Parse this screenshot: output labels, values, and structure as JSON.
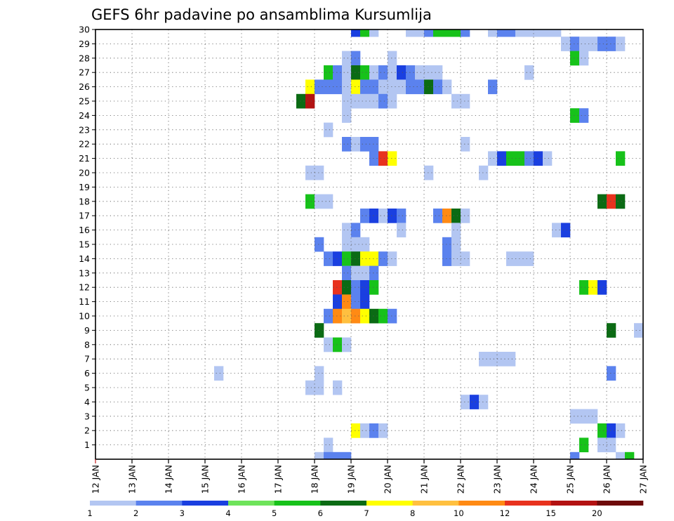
{
  "chart_data": {
    "type": "heatmap",
    "title": "GEFS 6hr padavine po ansamblima Kursumlija",
    "x_dates": [
      "12 JAN",
      "13 JAN",
      "14 JAN",
      "15 JAN",
      "16 JAN",
      "17 JAN",
      "18 JAN",
      "19 JAN",
      "20 JAN",
      "21 JAN",
      "22 JAN",
      "23 JAN",
      "24 JAN",
      "25 JAN",
      "26 JAN",
      "27 JAN"
    ],
    "x_domain": [
      12,
      27
    ],
    "y_ticks": [
      1,
      2,
      3,
      4,
      5,
      6,
      7,
      8,
      9,
      10,
      11,
      12,
      13,
      14,
      15,
      16,
      17,
      18,
      19,
      20,
      21,
      22,
      23,
      24,
      25,
      26,
      27,
      28,
      29,
      30
    ],
    "y_domain": [
      0,
      30
    ],
    "grid": true,
    "step_days": 0.25,
    "colorbar": {
      "labels": [
        "1",
        "2",
        "3",
        "4",
        "5",
        "6",
        "7",
        "8",
        "10",
        "12",
        "15",
        "20"
      ],
      "colors": [
        "#b3c6f2",
        "#5b82ee",
        "#1a3fe0",
        "#6ee35a",
        "#17c21a",
        "#0b6b14",
        "#ffff00",
        "#ffc040",
        "#ff8a14",
        "#e8321e",
        "#b31212",
        "#6e0a0a"
      ]
    },
    "cells": [
      [
        30,
        19.0,
        19.25,
        3
      ],
      [
        30,
        19.25,
        19.5,
        5
      ],
      [
        30,
        19.5,
        19.75,
        1
      ],
      [
        30,
        20.5,
        21.0,
        1
      ],
      [
        30,
        21.0,
        21.25,
        2
      ],
      [
        30,
        21.25,
        22.0,
        5
      ],
      [
        30,
        22.0,
        22.25,
        2
      ],
      [
        30,
        22.75,
        23.0,
        1
      ],
      [
        30,
        23.0,
        23.5,
        2
      ],
      [
        30,
        23.5,
        24.75,
        1
      ],
      [
        29,
        24.75,
        25.0,
        1
      ],
      [
        29,
        25.0,
        25.25,
        2
      ],
      [
        29,
        25.25,
        25.75,
        1
      ],
      [
        29,
        25.75,
        26.25,
        2
      ],
      [
        29,
        26.25,
        26.5,
        1
      ],
      [
        28,
        18.75,
        19.0,
        1
      ],
      [
        28,
        19.0,
        19.25,
        2
      ],
      [
        28,
        20.0,
        20.25,
        1
      ],
      [
        28,
        25.0,
        25.25,
        5
      ],
      [
        28,
        25.25,
        25.5,
        1
      ],
      [
        27,
        18.25,
        18.5,
        5
      ],
      [
        27,
        18.5,
        18.75,
        2
      ],
      [
        27,
        18.75,
        19.0,
        1
      ],
      [
        27,
        19.0,
        19.25,
        6
      ],
      [
        27,
        19.25,
        19.5,
        5
      ],
      [
        27,
        19.5,
        19.75,
        1
      ],
      [
        27,
        19.75,
        20.0,
        2
      ],
      [
        27,
        20.0,
        20.25,
        1
      ],
      [
        27,
        20.25,
        20.5,
        3
      ],
      [
        27,
        20.5,
        20.75,
        2
      ],
      [
        27,
        20.75,
        21.5,
        1
      ],
      [
        27,
        23.75,
        24.0,
        1
      ],
      [
        26,
        17.75,
        18.0,
        7
      ],
      [
        26,
        18.0,
        18.25,
        2
      ],
      [
        26,
        18.25,
        18.75,
        2
      ],
      [
        26,
        18.75,
        19.0,
        1
      ],
      [
        26,
        19.0,
        19.25,
        7
      ],
      [
        26,
        19.25,
        19.75,
        2
      ],
      [
        26,
        19.75,
        20.0,
        1
      ],
      [
        26,
        20.0,
        20.5,
        1
      ],
      [
        26,
        20.5,
        21.0,
        2
      ],
      [
        26,
        21.0,
        21.25,
        6
      ],
      [
        26,
        21.25,
        21.5,
        2
      ],
      [
        26,
        21.5,
        21.75,
        1
      ],
      [
        26,
        22.75,
        23.0,
        2
      ],
      [
        25,
        17.5,
        17.75,
        6
      ],
      [
        25,
        17.75,
        18.0,
        11
      ],
      [
        25,
        18.75,
        19.0,
        1
      ],
      [
        25,
        19.0,
        19.75,
        1
      ],
      [
        25,
        19.75,
        20.0,
        2
      ],
      [
        25,
        20.0,
        20.25,
        1
      ],
      [
        25,
        21.75,
        22.25,
        1
      ],
      [
        24,
        18.75,
        19.0,
        1
      ],
      [
        24,
        25.0,
        25.25,
        5
      ],
      [
        24,
        25.25,
        25.5,
        2
      ],
      [
        23,
        18.25,
        18.5,
        1
      ],
      [
        22,
        18.75,
        19.0,
        2
      ],
      [
        22,
        19.0,
        19.25,
        1
      ],
      [
        22,
        19.25,
        19.75,
        2
      ],
      [
        22,
        22.0,
        22.25,
        1
      ],
      [
        21,
        19.5,
        19.75,
        2
      ],
      [
        21,
        19.75,
        20.0,
        10
      ],
      [
        21,
        20.0,
        20.25,
        7
      ],
      [
        21,
        22.75,
        23.0,
        1
      ],
      [
        21,
        23.0,
        23.25,
        3
      ],
      [
        21,
        23.25,
        23.75,
        5
      ],
      [
        21,
        23.75,
        24.0,
        2
      ],
      [
        21,
        24.0,
        24.25,
        3
      ],
      [
        21,
        24.25,
        24.5,
        1
      ],
      [
        21,
        26.25,
        26.5,
        5
      ],
      [
        20,
        17.75,
        18.25,
        1
      ],
      [
        20,
        21.0,
        21.25,
        1
      ],
      [
        20,
        22.5,
        22.75,
        1
      ],
      [
        18,
        17.75,
        18.0,
        5
      ],
      [
        18,
        18.0,
        18.5,
        1
      ],
      [
        18,
        25.75,
        26.0,
        6
      ],
      [
        18,
        26.0,
        26.25,
        10
      ],
      [
        18,
        26.25,
        26.5,
        6
      ],
      [
        17,
        19.25,
        19.5,
        2
      ],
      [
        17,
        19.5,
        19.75,
        3
      ],
      [
        17,
        19.75,
        20.0,
        1
      ],
      [
        17,
        20.0,
        20.25,
        3
      ],
      [
        17,
        20.25,
        20.5,
        2
      ],
      [
        17,
        21.25,
        21.5,
        2
      ],
      [
        17,
        21.5,
        21.75,
        9
      ],
      [
        17,
        21.75,
        22.0,
        6
      ],
      [
        17,
        22.0,
        22.25,
        1
      ],
      [
        16,
        20.25,
        20.5,
        1
      ],
      [
        16,
        18.75,
        19.0,
        1
      ],
      [
        16,
        19.0,
        19.25,
        2
      ],
      [
        16,
        21.75,
        22.0,
        1
      ],
      [
        16,
        24.5,
        24.75,
        1
      ],
      [
        16,
        24.75,
        25.0,
        3
      ],
      [
        15,
        18.0,
        18.25,
        2
      ],
      [
        15,
        18.75,
        19.0,
        1
      ],
      [
        15,
        19.0,
        19.25,
        1
      ],
      [
        15,
        19.25,
        19.5,
        1
      ],
      [
        15,
        21.5,
        21.75,
        2
      ],
      [
        15,
        21.75,
        22.0,
        1
      ],
      [
        14,
        18.25,
        18.5,
        2
      ],
      [
        14,
        18.5,
        18.75,
        3
      ],
      [
        14,
        18.75,
        19.0,
        5
      ],
      [
        14,
        19.0,
        19.25,
        6
      ],
      [
        14,
        19.25,
        19.75,
        7
      ],
      [
        14,
        19.75,
        20.0,
        2
      ],
      [
        14,
        20.0,
        20.25,
        1
      ],
      [
        14,
        21.5,
        21.75,
        2
      ],
      [
        14,
        21.75,
        22.25,
        1
      ],
      [
        14,
        23.25,
        24.0,
        1
      ],
      [
        13,
        18.75,
        19.0,
        2
      ],
      [
        13,
        19.0,
        19.5,
        1
      ],
      [
        13,
        19.5,
        19.75,
        2
      ],
      [
        12,
        18.5,
        18.75,
        10
      ],
      [
        12,
        18.75,
        19.0,
        6
      ],
      [
        12,
        19.0,
        19.25,
        2
      ],
      [
        12,
        19.25,
        19.5,
        3
      ],
      [
        12,
        19.5,
        19.75,
        5
      ],
      [
        12,
        25.25,
        25.5,
        5
      ],
      [
        12,
        25.5,
        25.75,
        7
      ],
      [
        12,
        25.75,
        26.0,
        3
      ],
      [
        11,
        18.5,
        18.75,
        3
      ],
      [
        11,
        18.75,
        19.0,
        9
      ],
      [
        11,
        19.0,
        19.25,
        2
      ],
      [
        11,
        19.25,
        19.5,
        3
      ],
      [
        10,
        18.25,
        18.5,
        2
      ],
      [
        10,
        18.5,
        18.75,
        9
      ],
      [
        10,
        18.75,
        19.0,
        8
      ],
      [
        10,
        19.0,
        19.25,
        9
      ],
      [
        10,
        19.25,
        19.5,
        7
      ],
      [
        10,
        19.5,
        19.75,
        6
      ],
      [
        10,
        19.75,
        20.0,
        5
      ],
      [
        10,
        20.0,
        20.25,
        2
      ],
      [
        9,
        18.0,
        18.25,
        6
      ],
      [
        9,
        26.0,
        26.25,
        6
      ],
      [
        9,
        26.75,
        27.0,
        1
      ],
      [
        8,
        18.25,
        18.5,
        1
      ],
      [
        8,
        18.5,
        18.75,
        5
      ],
      [
        8,
        18.75,
        19.0,
        1
      ],
      [
        7,
        22.5,
        23.5,
        1
      ],
      [
        6,
        15.25,
        15.5,
        1
      ],
      [
        6,
        18.0,
        18.25,
        1
      ],
      [
        6,
        26.0,
        26.25,
        2
      ],
      [
        5,
        17.75,
        18.25,
        1
      ],
      [
        5,
        18.5,
        18.75,
        1
      ],
      [
        4,
        22.0,
        22.25,
        1
      ],
      [
        4,
        22.25,
        22.5,
        3
      ],
      [
        4,
        22.5,
        22.75,
        1
      ],
      [
        3,
        25.0,
        25.75,
        1
      ],
      [
        2,
        19.0,
        19.25,
        7
      ],
      [
        2,
        19.25,
        19.5,
        1
      ],
      [
        2,
        19.5,
        19.75,
        2
      ],
      [
        2,
        19.75,
        20.0,
        1
      ],
      [
        2,
        25.75,
        26.0,
        5
      ],
      [
        2,
        26.0,
        26.25,
        3
      ],
      [
        2,
        26.25,
        26.5,
        1
      ],
      [
        1,
        18.25,
        18.5,
        1
      ],
      [
        1,
        25.25,
        25.5,
        5
      ],
      [
        1,
        25.75,
        26.25,
        1
      ],
      [
        0,
        18.0,
        18.25,
        1
      ],
      [
        0,
        18.25,
        19.0,
        2
      ],
      [
        0,
        25.0,
        25.25,
        2
      ],
      [
        0,
        26.25,
        26.5,
        1
      ],
      [
        0,
        26.5,
        26.75,
        5
      ]
    ]
  }
}
